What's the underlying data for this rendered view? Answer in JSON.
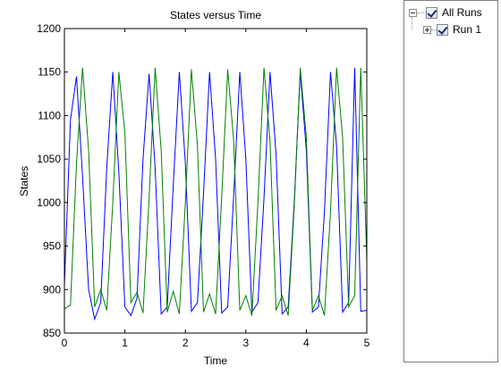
{
  "chart_data": {
    "type": "line",
    "title": "States versus Time",
    "xlabel": "Time",
    "ylabel": "States",
    "xlim": [
      0,
      5
    ],
    "ylim": [
      850,
      1200
    ],
    "xticks": [
      "0",
      "1",
      "2",
      "3",
      "4",
      "5"
    ],
    "yticks": [
      "850",
      "900",
      "950",
      "1000",
      "1050",
      "1100",
      "1150",
      "1200"
    ],
    "grid": false,
    "series": [
      {
        "color": "#0000ff",
        "x": [
          0,
          0.1,
          0.2,
          0.3,
          0.4,
          0.5,
          0.6,
          0.7,
          0.8,
          0.9,
          1.0,
          1.1,
          1.2,
          1.3,
          1.4,
          1.5,
          1.6,
          1.7,
          1.8,
          1.9,
          2.0,
          2.1,
          2.2,
          2.3,
          2.4,
          2.5,
          2.6,
          2.7,
          2.8,
          2.9,
          3.0,
          3.1,
          3.2,
          3.3,
          3.4,
          3.5,
          3.6,
          3.7,
          3.8,
          3.9,
          4.0,
          4.1,
          4.2,
          4.3,
          4.4,
          4.5,
          4.6,
          4.7,
          4.8,
          4.9,
          5.0
        ],
        "y": [
          905,
          1095,
          1145,
          1030,
          900,
          866,
          885,
          1040,
          1150,
          1035,
          880,
          870,
          890,
          1050,
          1148,
          1040,
          872,
          880,
          1020,
          1150,
          1045,
          875,
          885,
          1010,
          1150,
          1050,
          873,
          880,
          1010,
          1150,
          1050,
          874,
          885,
          1005,
          1150,
          1055,
          872,
          880,
          1000,
          1150,
          1060,
          874,
          880,
          990,
          1150,
          1065,
          874,
          885,
          1155,
          875,
          876
        ]
      },
      {
        "color": "#008000",
        "x": [
          0,
          0.1,
          0.2,
          0.3,
          0.4,
          0.5,
          0.6,
          0.7,
          0.8,
          0.9,
          1.0,
          1.1,
          1.2,
          1.3,
          1.4,
          1.5,
          1.6,
          1.7,
          1.8,
          1.9,
          2.0,
          2.1,
          2.2,
          2.3,
          2.4,
          2.5,
          2.6,
          2.7,
          2.8,
          2.9,
          3.0,
          3.1,
          3.2,
          3.3,
          3.4,
          3.5,
          3.6,
          3.7,
          3.8,
          3.9,
          4.0,
          4.1,
          4.2,
          4.3,
          4.4,
          4.5,
          4.6,
          4.7,
          4.8,
          4.9,
          5.0
        ],
        "y": [
          878,
          882,
          1045,
          1155,
          1060,
          880,
          900,
          876,
          1000,
          1150,
          1080,
          885,
          897,
          873,
          1005,
          1155,
          1060,
          874,
          898,
          872,
          1000,
          1153,
          1065,
          874,
          895,
          872,
          1005,
          1153,
          1070,
          876,
          893,
          870,
          1000,
          1155,
          1070,
          876,
          893,
          870,
          995,
          1155,
          1075,
          876,
          893,
          870,
          990,
          1155,
          1075,
          880,
          893,
          1155,
          934
        ]
      }
    ]
  },
  "tree": {
    "root_label": "All Runs",
    "child_label": "Run 1"
  }
}
